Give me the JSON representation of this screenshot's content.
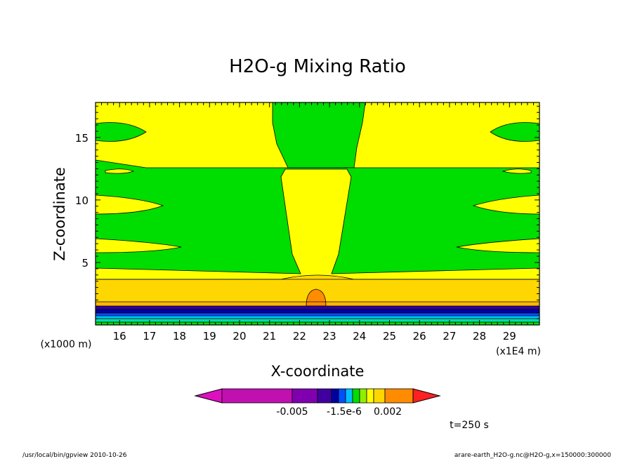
{
  "chart_data": {
    "type": "heatmap",
    "title": "H2O-g Mixing Ratio",
    "xlabel": "X-coordinate",
    "ylabel": "Z-coordinate",
    "x_unit_note": "(x1E4 m)",
    "y_unit_note": "(x1000 m)",
    "xlim": [
      15.2,
      30
    ],
    "ylim": [
      0,
      17.8
    ],
    "x_ticks": [
      16,
      17,
      18,
      19,
      20,
      21,
      22,
      23,
      24,
      25,
      26,
      27,
      28,
      29
    ],
    "x_tick_labels": [
      "16",
      "17",
      "18",
      "19",
      "20",
      "21",
      "22",
      "23",
      "24",
      "25",
      "26",
      "27",
      "28",
      "29"
    ],
    "y_ticks": [
      5,
      10,
      15
    ],
    "y_tick_labels": [
      "5",
      "10",
      "15"
    ],
    "colorbar_labels": [
      "-0.005",
      "-1.5e-6",
      "0.002"
    ],
    "time_label": "t=250 s",
    "colors": {
      "yellow": "#ffff00",
      "green": "#00dd00",
      "gold": "#ffd700",
      "light_orange": "#ffb700",
      "orange": "#ff8c00",
      "red": "#ff2020",
      "magenta": "#dd10c0",
      "purple": "#a000b0",
      "violet": "#7000c0",
      "indigo": "#3000a0",
      "navy": "#0000a0",
      "blue": "#0050ff",
      "cyan": "#00c0ff",
      "teal": "#00e0a0"
    }
  },
  "footer": {
    "left": "/usr/local/bin/gpview  2010-10-26",
    "right": "arare-earth_H2O-g.nc@H2O-g,x=150000:300000"
  }
}
